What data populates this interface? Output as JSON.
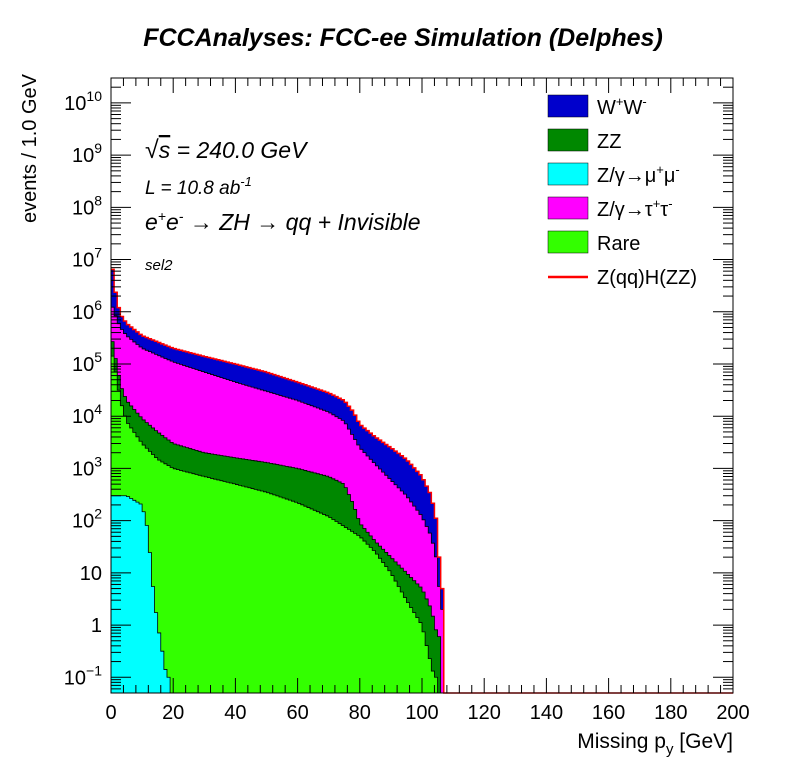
{
  "chart_data": {
    "type": "area",
    "stacked": true,
    "title": "FCCAnalyses: FCC-ee Simulation (Delphes)",
    "xlabel": "Missing p_y [GeV]",
    "ylabel": "events / 1.0 GeV",
    "xlim": [
      0,
      200
    ],
    "ylim": [
      0.05,
      30000000000
    ],
    "yscale": "log",
    "x_ticks": [
      0,
      20,
      40,
      60,
      80,
      100,
      120,
      140,
      160,
      180,
      200
    ],
    "x_tick_labels": [
      "0",
      "20",
      "40",
      "60",
      "80",
      "100",
      "120",
      "140",
      "160",
      "180",
      "200"
    ],
    "y_ticks": [
      0.1,
      1,
      10,
      100,
      1000,
      10000,
      100000,
      1000000,
      10000000,
      100000000,
      1000000000,
      10000000000
    ],
    "y_tick_labels": [
      "10^-1",
      "1",
      "10",
      "10^2",
      "10^3",
      "10^4",
      "10^5",
      "10^6",
      "10^7",
      "10^8",
      "10^9",
      "10^10"
    ],
    "annotations": {
      "sqrt_s": "√s = 240.0 GeV",
      "lumi": "L = 10.8 ab^-1",
      "process": "e+e- → ZH → qq + Invisible",
      "selection": "sel2"
    },
    "legend_position": "top-right",
    "series": [
      {
        "name": "W+W-",
        "color": "#0000cc",
        "points": [
          [
            0,
            12000000
          ],
          [
            1,
            3500000
          ],
          [
            2,
            1600000
          ],
          [
            3,
            900000
          ],
          [
            5,
            600000
          ],
          [
            10,
            350000
          ],
          [
            20,
            200000
          ],
          [
            30,
            140000
          ],
          [
            40,
            100000
          ],
          [
            50,
            70000
          ],
          [
            60,
            45000
          ],
          [
            70,
            28000
          ],
          [
            75,
            20000
          ],
          [
            78,
            12000
          ],
          [
            80,
            7000
          ],
          [
            85,
            4000
          ],
          [
            90,
            2500
          ],
          [
            95,
            1500
          ],
          [
            100,
            700
          ],
          [
            103,
            300
          ],
          [
            105,
            80
          ],
          [
            106,
            5
          ],
          [
            107,
            0
          ]
        ]
      },
      {
        "name": "ZZ",
        "color": "#008800",
        "points": [
          [
            0,
            400000
          ],
          [
            1,
            180000
          ],
          [
            2,
            90000
          ],
          [
            3,
            40000
          ],
          [
            5,
            20000
          ],
          [
            10,
            9000
          ],
          [
            15,
            5000
          ],
          [
            20,
            3000
          ],
          [
            30,
            2000
          ],
          [
            40,
            1600
          ],
          [
            50,
            1300
          ],
          [
            60,
            1000
          ],
          [
            70,
            700
          ],
          [
            75,
            500
          ],
          [
            78,
            200
          ],
          [
            80,
            90
          ],
          [
            85,
            40
          ],
          [
            90,
            20
          ],
          [
            95,
            10
          ],
          [
            100,
            5
          ],
          [
            103,
            2
          ],
          [
            105,
            0.6
          ],
          [
            106,
            0
          ]
        ]
      },
      {
        "name": "Z/γ→μ+μ-",
        "color": "#00ffff",
        "points": [
          [
            0,
            300
          ],
          [
            5,
            300
          ],
          [
            10,
            200
          ],
          [
            12,
            60
          ],
          [
            13,
            10
          ],
          [
            14,
            3
          ],
          [
            15,
            1
          ],
          [
            16,
            0.5
          ],
          [
            17,
            0.2
          ],
          [
            18,
            0.1
          ],
          [
            19,
            0
          ]
        ]
      },
      {
        "name": "Z/γ→τ+τ-",
        "color": "#ff00ff",
        "points": [
          [
            0,
            1500000
          ],
          [
            1,
            1000000
          ],
          [
            2,
            700000
          ],
          [
            3,
            500000
          ],
          [
            5,
            350000
          ],
          [
            10,
            200000
          ],
          [
            20,
            110000
          ],
          [
            30,
            70000
          ],
          [
            40,
            45000
          ],
          [
            50,
            30000
          ],
          [
            60,
            20000
          ],
          [
            70,
            12000
          ],
          [
            75,
            8000
          ],
          [
            78,
            4000
          ],
          [
            80,
            2500
          ],
          [
            85,
            1200
          ],
          [
            90,
            600
          ],
          [
            95,
            300
          ],
          [
            100,
            120
          ],
          [
            103,
            50
          ],
          [
            105,
            15
          ],
          [
            106,
            2
          ],
          [
            107,
            0
          ]
        ]
      },
      {
        "name": "Rare",
        "color": "#33ff00",
        "points": [
          [
            0,
            200000
          ],
          [
            1,
            100000
          ],
          [
            2,
            50000
          ],
          [
            3,
            20000
          ],
          [
            5,
            8000
          ],
          [
            10,
            3000
          ],
          [
            15,
            1500
          ],
          [
            20,
            1000
          ],
          [
            30,
            700
          ],
          [
            40,
            500
          ],
          [
            50,
            350
          ],
          [
            60,
            220
          ],
          [
            70,
            120
          ],
          [
            80,
            50
          ],
          [
            85,
            25
          ],
          [
            90,
            10
          ],
          [
            95,
            3
          ],
          [
            100,
            1
          ],
          [
            102,
            0.3
          ],
          [
            104,
            0.1
          ],
          [
            105,
            0
          ]
        ]
      },
      {
        "name": "Z(qq)H(ZZ)",
        "color": "#ff0000",
        "style": "line",
        "points": [
          [
            0,
            12000000
          ],
          [
            1,
            3500000
          ],
          [
            2,
            1600000
          ],
          [
            3,
            900000
          ],
          [
            5,
            600000
          ],
          [
            10,
            350000
          ],
          [
            20,
            200000
          ],
          [
            30,
            140000
          ],
          [
            40,
            100000
          ],
          [
            50,
            70000
          ],
          [
            60,
            45000
          ],
          [
            70,
            28000
          ],
          [
            75,
            20000
          ],
          [
            78,
            12000
          ],
          [
            80,
            7000
          ],
          [
            85,
            4000
          ],
          [
            90,
            2500
          ],
          [
            95,
            1500
          ],
          [
            100,
            700
          ],
          [
            103,
            300
          ],
          [
            105,
            80
          ],
          [
            106,
            5
          ],
          [
            107,
            0
          ]
        ]
      }
    ]
  }
}
